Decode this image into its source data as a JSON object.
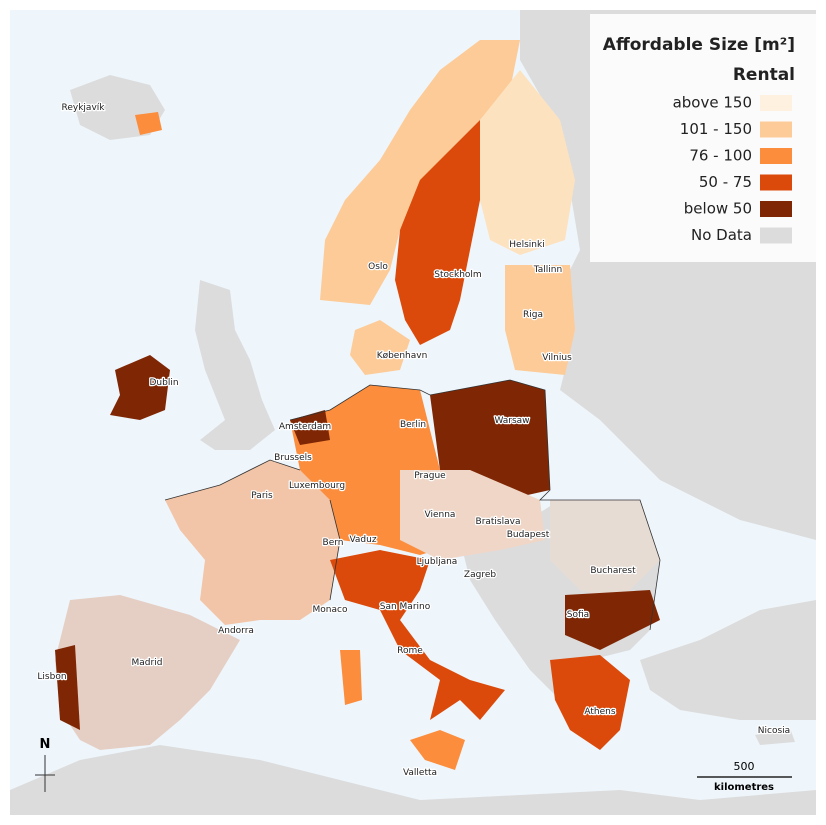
{
  "legend": {
    "title": "Affordable Size [m²]",
    "subtitle": "Rental",
    "items": [
      {
        "label": "above 150",
        "color": "#fef1e0"
      },
      {
        "label": "101 - 150",
        "color": "#fdcb97"
      },
      {
        "label": "76 - 100",
        "color": "#fb8d3d"
      },
      {
        "label": "50 - 75",
        "color": "#db4a0a"
      },
      {
        "label": "below 50",
        "color": "#7f2704"
      },
      {
        "label": "No Data",
        "color": "#dcdcdc"
      }
    ]
  },
  "cities": [
    "Reykjavík",
    "Oslo",
    "Stockholm",
    "Helsinki",
    "Tallinn",
    "Riga",
    "København",
    "Vilnius",
    "Dublin",
    "Amsterdam",
    "Berlin",
    "Warsaw",
    "Brussels",
    "Luxembourg",
    "Prague",
    "Paris",
    "Vienna",
    "Bratislava",
    "Budapest",
    "Vaduz",
    "Bern",
    "Ljubljana",
    "Zagreb",
    "Bucharest",
    "Monaco",
    "San Marino",
    "Andorra",
    "Sofia",
    "Madrid",
    "Rome",
    "Lisbon",
    "Athens",
    "Nicosia",
    "Valletta"
  ],
  "scale_bar": {
    "distance": "500",
    "unit": "kilometres"
  },
  "north_arrow": "N"
}
